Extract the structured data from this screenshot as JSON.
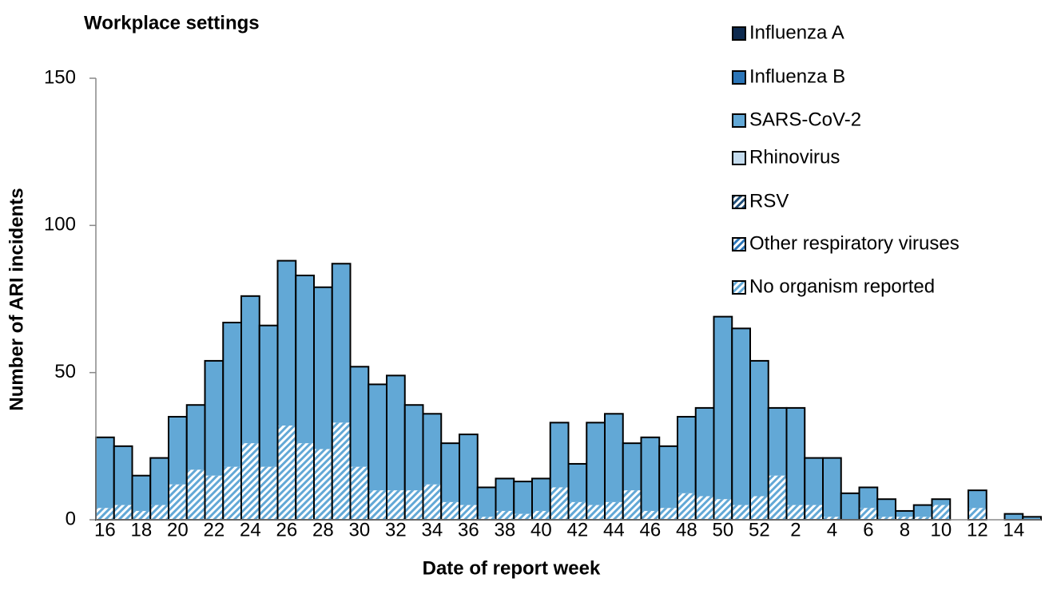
{
  "chart_data": {
    "type": "stacked_bar",
    "title": "Workplace settings",
    "x_label": "Date of report week",
    "y_label": "Number of ARI incidents",
    "categories": [
      16,
      null,
      18,
      null,
      20,
      null,
      22,
      null,
      24,
      null,
      26,
      null,
      28,
      null,
      30,
      null,
      32,
      null,
      34,
      null,
      36,
      null,
      38,
      null,
      40,
      null,
      42,
      null,
      44,
      null,
      46,
      null,
      48,
      null,
      50,
      null,
      52,
      null,
      2,
      null,
      4,
      null,
      6,
      null,
      8,
      null,
      10,
      null,
      12,
      null,
      14,
      null
    ],
    "series": [
      {
        "name": "Influenza A",
        "color": "#0d2a4f",
        "hatch": false,
        "values": [
          0,
          0,
          0,
          0,
          0,
          0,
          0,
          0,
          0,
          0,
          0,
          0,
          0,
          0,
          0,
          0,
          0,
          0,
          0,
          0,
          0,
          0,
          0,
          0,
          0,
          0,
          0,
          0,
          0,
          0,
          0,
          0,
          0,
          0,
          0,
          0,
          0,
          0,
          0,
          0,
          0,
          0,
          0,
          0,
          0,
          0,
          0,
          0,
          0,
          0,
          0,
          0
        ]
      },
      {
        "name": "Influenza B",
        "color": "#2b75b8",
        "hatch": false,
        "values": [
          0,
          0,
          0,
          0,
          0,
          0,
          0,
          0,
          0,
          0,
          0,
          0,
          0,
          0,
          0,
          0,
          0,
          0,
          0,
          0,
          0,
          0,
          0,
          0,
          0,
          0,
          0,
          0,
          0,
          0,
          0,
          0,
          0,
          0,
          0,
          0,
          0,
          0,
          0,
          0,
          0,
          0,
          0,
          0,
          0,
          0,
          0,
          0,
          0,
          0,
          0,
          0
        ]
      },
      {
        "name": "SARS-CoV-2",
        "color": "#62a8d6",
        "hatch": false,
        "values": [
          24,
          20,
          12,
          16,
          23,
          22,
          39,
          49,
          50,
          48,
          56,
          57,
          55,
          54,
          34,
          36,
          39,
          29,
          24,
          20,
          24,
          10,
          11,
          11,
          11,
          22,
          13,
          28,
          30,
          16,
          25,
          21,
          26,
          30,
          62,
          60,
          46,
          23,
          33,
          16,
          20,
          9,
          7,
          6,
          2,
          4,
          2,
          0,
          6,
          0,
          2,
          1
        ]
      },
      {
        "name": "Rhinovirus",
        "color": "#c5dcee",
        "hatch": false,
        "values": [
          0,
          0,
          0,
          0,
          0,
          0,
          0,
          0,
          0,
          0,
          0,
          0,
          0,
          0,
          0,
          0,
          0,
          0,
          0,
          0,
          0,
          0,
          0,
          0,
          0,
          0,
          0,
          0,
          0,
          0,
          0,
          0,
          0,
          0,
          0,
          0,
          0,
          0,
          0,
          0,
          0,
          0,
          0,
          0,
          0,
          0,
          0,
          0,
          0,
          0,
          0,
          0
        ]
      },
      {
        "name": "RSV",
        "color": "#1f4e79",
        "hatch": true,
        "values": [
          0,
          0,
          0,
          0,
          0,
          0,
          0,
          0,
          0,
          0,
          0,
          0,
          0,
          0,
          0,
          0,
          0,
          0,
          0,
          0,
          0,
          0,
          0,
          0,
          0,
          0,
          0,
          0,
          0,
          0,
          0,
          0,
          0,
          0,
          0,
          0,
          0,
          0,
          0,
          0,
          0,
          0,
          0,
          0,
          0,
          0,
          0,
          0,
          0,
          0,
          0,
          0
        ]
      },
      {
        "name": "Other respiratory viruses",
        "color": "#2b75b8",
        "hatch": true,
        "values": [
          0,
          0,
          0,
          0,
          0,
          0,
          0,
          0,
          0,
          0,
          0,
          0,
          0,
          0,
          0,
          0,
          0,
          0,
          0,
          0,
          0,
          0,
          0,
          0,
          0,
          0,
          0,
          0,
          0,
          0,
          0,
          0,
          0,
          0,
          0,
          0,
          0,
          0,
          0,
          0,
          0,
          0,
          0,
          0,
          0,
          0,
          0,
          0,
          0,
          0,
          0,
          0
        ]
      },
      {
        "name": "No organism reported",
        "color": "#62a8d6",
        "hatch": true,
        "values": [
          4,
          5,
          3,
          5,
          12,
          17,
          15,
          18,
          26,
          18,
          32,
          26,
          24,
          33,
          18,
          10,
          10,
          10,
          12,
          6,
          5,
          1,
          3,
          2,
          3,
          11,
          6,
          5,
          6,
          10,
          3,
          4,
          9,
          8,
          7,
          5,
          8,
          15,
          5,
          5,
          1,
          0,
          4,
          1,
          1,
          1,
          5,
          0,
          4,
          0,
          0,
          0
        ]
      }
    ],
    "stack_order": "last_series_bottom",
    "ylim": [
      0,
      150
    ],
    "yticks": [
      0,
      50,
      100,
      150
    ],
    "grid": false,
    "legend": "top-right"
  }
}
